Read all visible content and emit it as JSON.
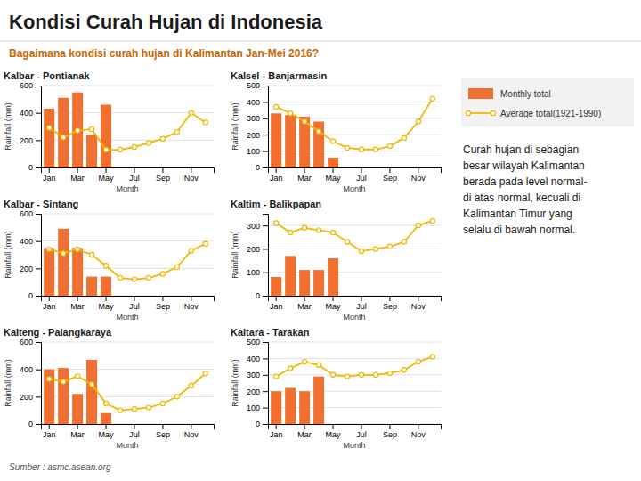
{
  "title": "Kondisi Curah Hujan di Indonesia",
  "subtitle": "Bagaimana kondisi curah hujan di Kalimantan Jan-Mei 2016?",
  "annotations": [
    "Curah hujan di sebagian",
    "besar wilayah Kalimantan",
    "berada pada level normal-",
    "di atas normal, kecuali di",
    "Kalimantan Timur yang",
    "selalu di bawah normal."
  ],
  "source": "Sumber : asmc.asean.org",
  "chart_data": [
    {
      "type": "bar",
      "title": "Kalbar - Pontianak",
      "xlabel": "Month",
      "ylabel": "Rainfall (mm)",
      "categories": [
        "Jan",
        null,
        "Mar",
        null,
        "May",
        null,
        "Jul",
        null,
        "Sep",
        null,
        "Nov",
        null
      ],
      "series": [
        {
          "name": "Monthly total",
          "type": "bar",
          "color": "#f07030",
          "values": [
            430,
            510,
            550,
            240,
            460,
            0,
            0,
            0,
            0,
            0,
            0,
            0
          ]
        },
        {
          "name": "Average total(1921-1990)",
          "type": "line",
          "color": "#f0b800",
          "marker": "circle",
          "values": [
            290,
            220,
            270,
            280,
            130,
            130,
            150,
            180,
            210,
            260,
            400,
            330
          ]
        }
      ],
      "ylim": [
        0,
        600
      ],
      "yticks": [
        0,
        200,
        400,
        600
      ],
      "grid": true
    },
    {
      "type": "bar",
      "title": "Kalsel - Banjarmasin",
      "xlabel": "Month",
      "ylabel": "Rainfall (mm)",
      "categories": [
        "Jan",
        null,
        "Mar",
        null,
        "May",
        null,
        "Jul",
        null,
        "Sep",
        null,
        "Nov",
        null
      ],
      "series": [
        {
          "name": "Monthly total",
          "type": "bar",
          "color": "#f07030",
          "values": [
            330,
            320,
            310,
            280,
            60,
            0,
            0,
            0,
            0,
            0,
            0,
            0
          ]
        },
        {
          "name": "Average total(1921-1990)",
          "type": "line",
          "color": "#f0b800",
          "marker": "circle",
          "values": [
            370,
            330,
            280,
            220,
            160,
            120,
            110,
            110,
            130,
            180,
            280,
            420
          ]
        }
      ],
      "ylim": [
        0,
        500
      ],
      "yticks": [
        0,
        100,
        200,
        300,
        400,
        500
      ],
      "grid": true
    },
    {
      "type": "bar",
      "title": "Kalbar - Sintang",
      "xlabel": "Month",
      "ylabel": "Rainfall (mm)",
      "categories": [
        "Jan",
        null,
        "Mar",
        null,
        "May",
        null,
        "Jul",
        null,
        "Sep",
        null,
        "Nov",
        null
      ],
      "series": [
        {
          "name": "Monthly total",
          "type": "bar",
          "color": "#f07030",
          "values": [
            350,
            490,
            350,
            140,
            140,
            0,
            0,
            0,
            0,
            0,
            0,
            0
          ]
        },
        {
          "name": "Average total(1921-1990)",
          "type": "line",
          "color": "#f0b800",
          "marker": "circle",
          "values": [
            340,
            310,
            340,
            300,
            220,
            130,
            120,
            130,
            160,
            210,
            330,
            380
          ]
        }
      ],
      "ylim": [
        0,
        600
      ],
      "yticks": [
        0,
        200,
        400,
        600
      ],
      "grid": true
    },
    {
      "type": "bar",
      "title": "Kaltim - Balikpapan",
      "xlabel": "Month",
      "ylabel": "Rainfall (mm)",
      "categories": [
        "Jan",
        null,
        "Mar",
        null,
        "May",
        null,
        "Jul",
        null,
        "Sep",
        null,
        "Nov",
        null
      ],
      "series": [
        {
          "name": "Monthly total",
          "type": "bar",
          "color": "#f07030",
          "values": [
            80,
            170,
            110,
            110,
            160,
            0,
            0,
            0,
            0,
            0,
            0,
            0
          ]
        },
        {
          "name": "Average total(1921-1990)",
          "type": "line",
          "color": "#f0b800",
          "marker": "circle",
          "values": [
            310,
            270,
            290,
            280,
            270,
            230,
            190,
            200,
            210,
            230,
            300,
            320
          ]
        }
      ],
      "ylim": [
        0,
        350
      ],
      "yticks": [
        0,
        100,
        200,
        300
      ],
      "grid": true
    },
    {
      "type": "bar",
      "title": "Kalteng - Palangkaraya",
      "xlabel": "Month",
      "ylabel": "Rainfall (mm)",
      "categories": [
        "Jan",
        null,
        "Mar",
        null,
        "May",
        null,
        "Jul",
        null,
        "Sep",
        null,
        "Nov",
        null
      ],
      "series": [
        {
          "name": "Monthly total",
          "type": "bar",
          "color": "#f07030",
          "values": [
            400,
            410,
            220,
            470,
            80,
            0,
            0,
            0,
            0,
            0,
            0,
            0
          ]
        },
        {
          "name": "Average total(1921-1990)",
          "type": "line",
          "color": "#f0b800",
          "marker": "circle",
          "values": [
            330,
            310,
            350,
            290,
            150,
            100,
            110,
            120,
            150,
            200,
            280,
            370
          ]
        }
      ],
      "ylim": [
        0,
        600
      ],
      "yticks": [
        0,
        200,
        400,
        600
      ],
      "grid": true
    },
    {
      "type": "bar",
      "title": "Kaltara - Tarakan",
      "xlabel": "Month",
      "ylabel": "Rainfall (mm)",
      "categories": [
        "Jan",
        null,
        "Mar",
        null,
        "May",
        null,
        "Jul",
        null,
        "Sep",
        null,
        "Nov",
        null
      ],
      "series": [
        {
          "name": "Monthly total",
          "type": "bar",
          "color": "#f07030",
          "values": [
            200,
            220,
            200,
            290,
            0,
            0,
            0,
            0,
            0,
            0,
            0,
            0
          ]
        },
        {
          "name": "Average total(1921-1990)",
          "type": "line",
          "color": "#f0b800",
          "marker": "circle",
          "values": [
            290,
            340,
            380,
            360,
            300,
            290,
            300,
            300,
            310,
            330,
            380,
            410
          ]
        }
      ],
      "ylim": [
        0,
        500
      ],
      "yticks": [
        0,
        100,
        200,
        300,
        400,
        500
      ],
      "grid": true
    }
  ]
}
